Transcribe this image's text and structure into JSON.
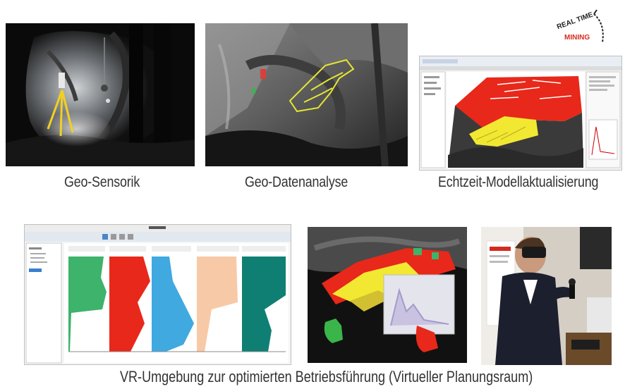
{
  "captions": {
    "geo_sensorik": "Geo-Sensorik",
    "geo_datenanalyse": "Geo-Datenanalyse",
    "echtzeit": "Echtzeit-Modellaktualisierung",
    "vr": "VR-Umgebung zur optimierten Betriebsführung (Virtueller Planungsraum)"
  },
  "logo": {
    "line1": "REAL TIME",
    "line2": "MINING"
  },
  "colors": {
    "red": "#e8281a",
    "yellow": "#f2e832",
    "green": "#3db36b",
    "blue": "#3fa9e0",
    "peach": "#f8c9a6",
    "teal": "#0f7f73",
    "dark": "#1a1a1a"
  }
}
